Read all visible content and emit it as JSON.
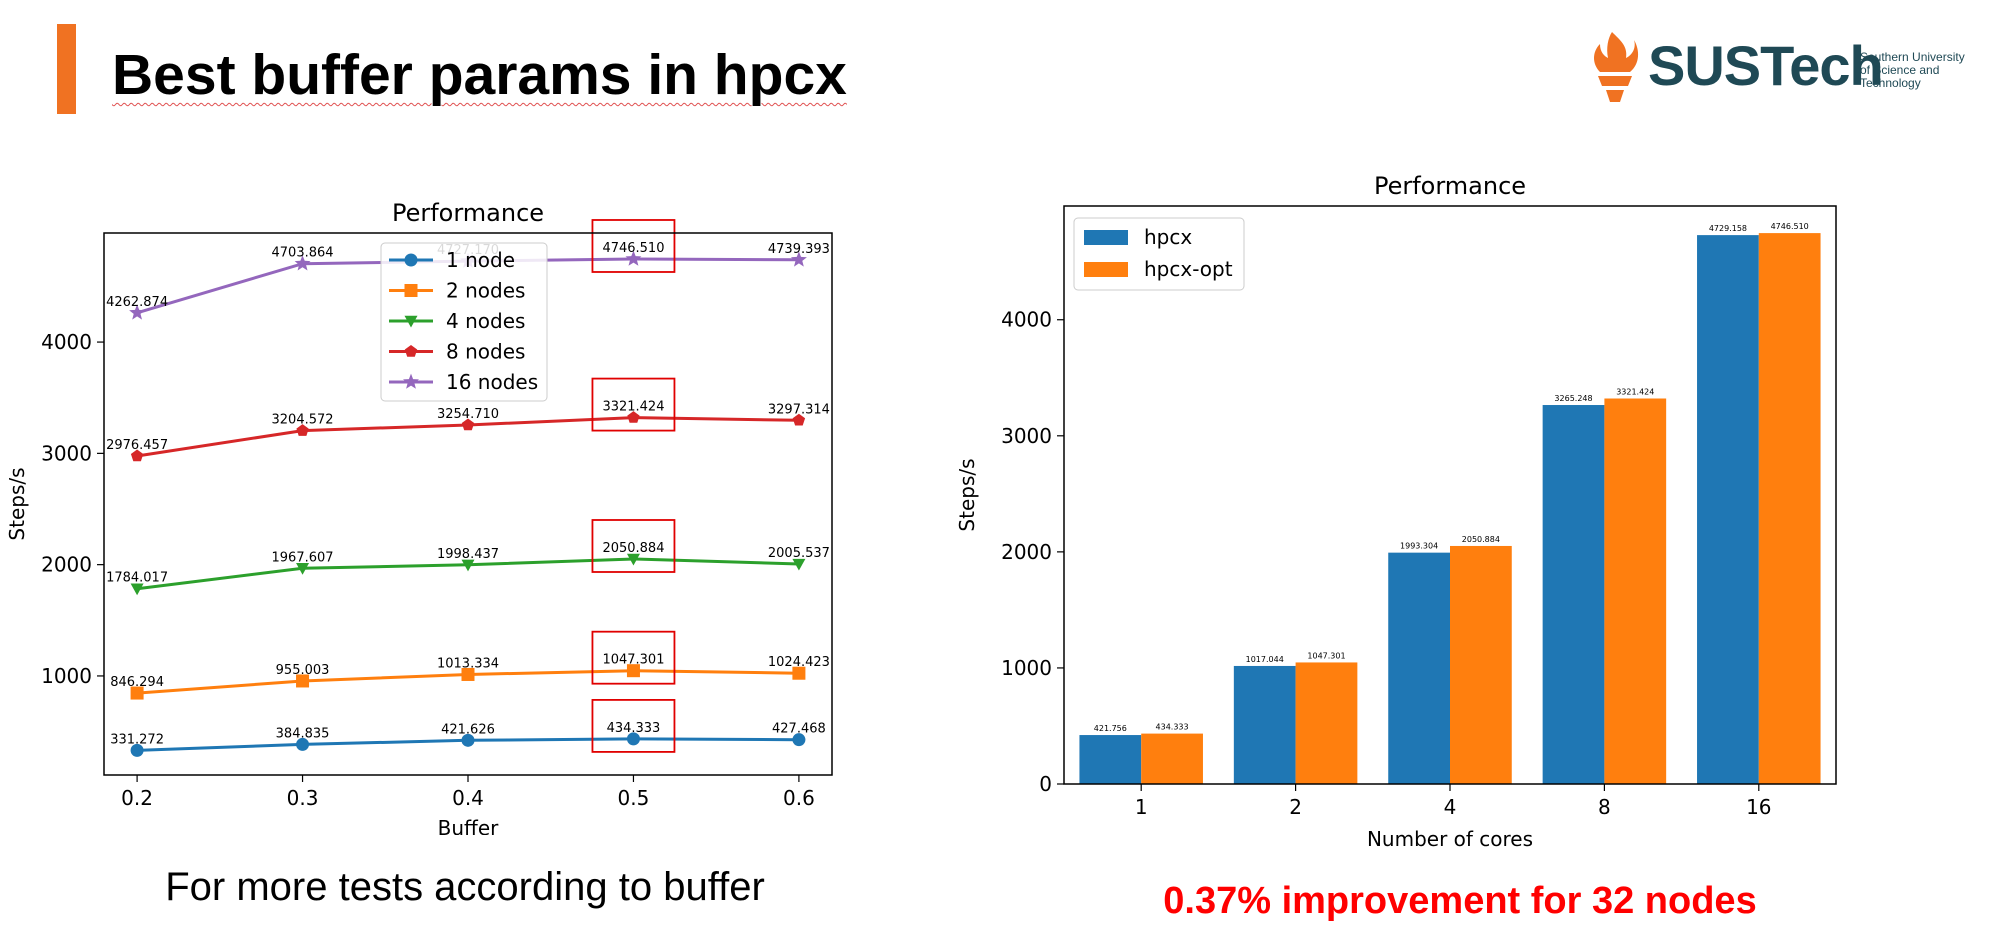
{
  "slide": {
    "title": "Best buffer params in hpcx",
    "caption_left": "For more tests according to buffer",
    "caption_right": "0.37% improvement for 32 nodes",
    "accent_color": "#f07222",
    "caption_right_color": "#ff0000"
  },
  "logo": {
    "wordmark": "SUSTech",
    "subtitle_lines": [
      "Southern University",
      "of Science and",
      "Technology"
    ],
    "color": "#1f4955",
    "icon_color": "#f07222",
    "icon": "torch-flame-icon"
  },
  "chart_data": [
    {
      "type": "line",
      "title": "Performance",
      "xlabel": "Buffer",
      "ylabel": "Steps/s",
      "x": [
        0.2,
        0.3,
        0.4,
        0.5,
        0.6
      ],
      "x_tick_labels": [
        "0.2",
        "0.3",
        "0.4",
        "0.5",
        "0.6"
      ],
      "xlim": [
        0.18,
        0.62
      ],
      "ylim": [
        110,
        4980
      ],
      "y_ticks": [
        1000,
        2000,
        3000,
        4000
      ],
      "grid": false,
      "legend_position": "upper center",
      "highlight_x": 0.5,
      "highlight_color": "#e00000",
      "series": [
        {
          "name": "1 node",
          "marker": "circle",
          "color": "#1f77b4",
          "values": [
            331.272,
            384.835,
            421.626,
            434.333,
            427.468
          ],
          "labels": [
            "331.272",
            "384.835",
            "421.626",
            "434.333",
            "427.468"
          ]
        },
        {
          "name": "2 nodes",
          "marker": "square",
          "color": "#ff7f0e",
          "values": [
            846.294,
            955.003,
            1013.334,
            1047.301,
            1024.423
          ],
          "labels": [
            "846.294",
            "955.003",
            "1013.334",
            "1047.301",
            "1024.423"
          ]
        },
        {
          "name": "4 nodes",
          "marker": "triangle-down",
          "color": "#2ca02c",
          "values": [
            1784.017,
            1967.607,
            1998.437,
            2050.884,
            2005.537
          ],
          "labels": [
            "1784.017",
            "1967.607",
            "1998.437",
            "2050.884",
            "2005.537"
          ]
        },
        {
          "name": "8 nodes",
          "marker": "pentagon",
          "color": "#d62728",
          "values": [
            2976.457,
            3204.572,
            3254.71,
            3321.424,
            3297.314
          ],
          "labels": [
            "2976.457",
            "3204.572",
            "3254.710",
            "3321.424",
            "3297.314"
          ]
        },
        {
          "name": "16 nodes",
          "marker": "star",
          "color": "#9467bd",
          "values": [
            4262.874,
            4703.864,
            4727.17,
            4746.51,
            4739.393
          ],
          "labels": [
            "4262.874",
            "4703.864",
            "4727.170",
            "4746.510",
            "4739.393"
          ]
        }
      ]
    },
    {
      "type": "bar",
      "title": "Performance",
      "xlabel": "Number of cores",
      "ylabel": "Steps/s",
      "categories": [
        "1",
        "2",
        "4",
        "8",
        "16"
      ],
      "ylim": [
        0,
        4980
      ],
      "y_ticks": [
        0,
        1000,
        2000,
        3000,
        4000
      ],
      "grid": false,
      "legend_position": "upper left",
      "series": [
        {
          "name": "hpcx",
          "color": "#1f77b4",
          "values": [
            421.756,
            1017.044,
            1993.304,
            3265.248,
            4729.158
          ],
          "labels": [
            "421.756",
            "1017.044",
            "1993.304",
            "3265.248",
            "4729.158"
          ]
        },
        {
          "name": "hpcx-opt",
          "color": "#ff7f0e",
          "values": [
            434.333,
            1047.301,
            2050.884,
            3321.424,
            4746.51
          ],
          "labels": [
            "434.333",
            "1047.301",
            "2050.884",
            "3321.424",
            "4746.510"
          ]
        }
      ]
    }
  ]
}
